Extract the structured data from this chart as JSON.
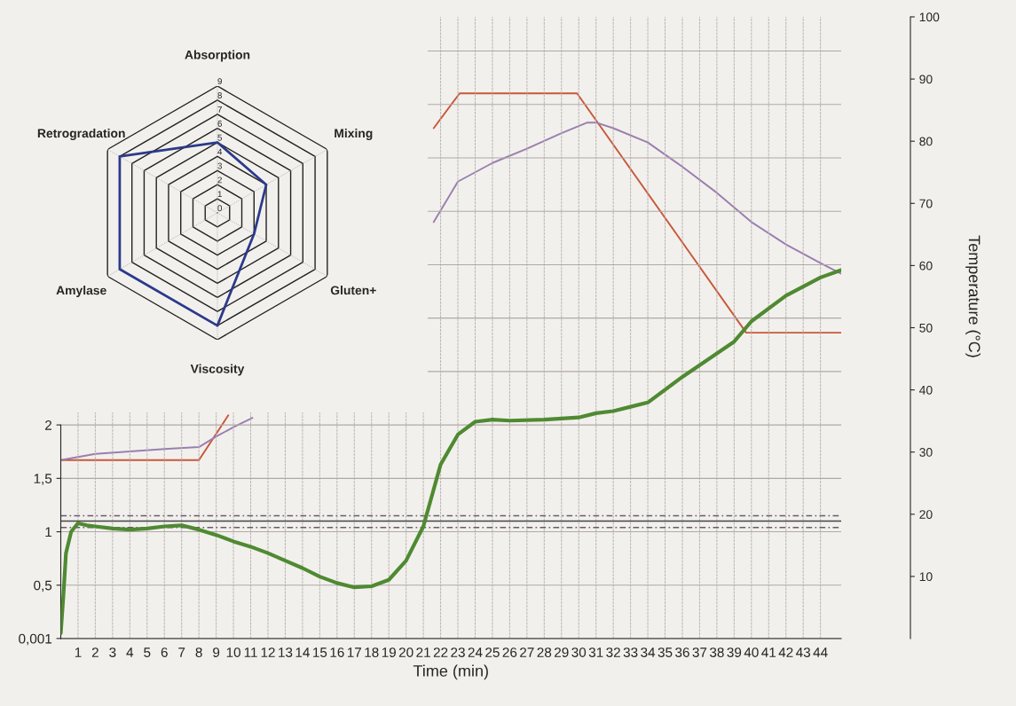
{
  "chart_data": [
    {
      "type": "radar",
      "categories": [
        "Absorption",
        "Mixing",
        "Gluten+",
        "Viscosity",
        "Amylase",
        "Retrogradation"
      ],
      "series": [
        {
          "color": "#2b3a8c",
          "values": [
            5,
            4,
            3,
            8,
            8,
            8
          ]
        }
      ],
      "ylim": [
        0,
        9
      ],
      "yticks": [
        0,
        1,
        2,
        3,
        4,
        5,
        6,
        7,
        8,
        9
      ],
      "grid": true
    },
    {
      "type": "line",
      "xlabel": "Time (min)",
      "y2label": "Temperature (°C)",
      "xlim": [
        0,
        45.2
      ],
      "xticks": [
        1,
        2,
        3,
        4,
        5,
        6,
        7,
        8,
        9,
        10,
        11,
        12,
        13,
        14,
        15,
        16,
        17,
        18,
        19,
        20,
        21,
        22,
        23,
        24,
        25,
        26,
        27,
        28,
        29,
        30,
        31,
        32,
        33,
        34,
        35,
        36,
        37,
        38,
        39,
        40,
        41,
        42,
        43,
        44
      ],
      "ylim": [
        0,
        5.82
      ],
      "yticks": [
        {
          "value": 0.001,
          "label": "0,001"
        },
        {
          "value": 0.5,
          "label": "0,5"
        },
        1,
        {
          "value": 1.5,
          "label": "1,5"
        },
        2,
        {
          "value": 2.5,
          "label": null
        },
        {
          "value": 3,
          "label": null
        },
        {
          "value": 3.5,
          "label": null
        },
        {
          "value": 4,
          "label": null
        },
        {
          "value": 4.5,
          "label": null
        },
        {
          "value": 5,
          "label": null
        },
        {
          "value": 5.5,
          "label": null
        }
      ],
      "y2lim": [
        0,
        100
      ],
      "y2ticks": [
        10,
        20,
        30,
        40,
        50,
        60,
        70,
        80,
        90,
        100
      ],
      "grid": true,
      "ref_lines": [
        {
          "axis": "y",
          "value": 1.15,
          "line_style": "dashed",
          "color": "#6a5a6a"
        },
        {
          "axis": "y",
          "value": 1.1,
          "line_style": "solid",
          "color": "#444444"
        },
        {
          "axis": "y",
          "value": 1.04,
          "line_style": "dashed",
          "color": "#6a5a6a"
        }
      ],
      "series": [
        {
          "type": "line",
          "color": "#4f8a32",
          "x": [
            0,
            0.15,
            0.3,
            0.6,
            1,
            1.5,
            2,
            3,
            4,
            5,
            6,
            7,
            8,
            9,
            10,
            11,
            12,
            13,
            14,
            15,
            16,
            17,
            18,
            19,
            20,
            21,
            22,
            23,
            24,
            25,
            26,
            28,
            30,
            31,
            32,
            33,
            34,
            36,
            38,
            39,
            40,
            42,
            44,
            45.2
          ],
          "values": [
            0.05,
            0.4,
            0.8,
            1.0,
            1.08,
            1.06,
            1.05,
            1.03,
            1.02,
            1.03,
            1.05,
            1.06,
            1.02,
            0.97,
            0.91,
            0.86,
            0.8,
            0.73,
            0.66,
            0.58,
            0.52,
            0.48,
            0.49,
            0.55,
            0.73,
            1.05,
            1.63,
            1.91,
            2.03,
            2.05,
            2.04,
            2.05,
            2.07,
            2.11,
            2.13,
            2.17,
            2.21,
            2.45,
            2.67,
            2.78,
            2.97,
            3.21,
            3.38,
            3.45
          ]
        },
        {
          "type": "line",
          "axis": "y2",
          "color": "#c8583a",
          "x": [
            0,
            8,
            9.7,
            15,
            21.6,
            23.1,
            29.9,
            39.7,
            45.2
          ],
          "values": [
            28.7,
            28.7,
            35.9,
            null,
            82.1,
            87.7,
            87.7,
            49.2,
            49.2
          ]
        },
        {
          "type": "line",
          "axis": "y2",
          "color": "#9a7fb0",
          "x": [
            0,
            2,
            4,
            6,
            8,
            9,
            10,
            11.1,
            15,
            21.6,
            23,
            25,
            27,
            29,
            30.5,
            31,
            32,
            34,
            36,
            38,
            40,
            42,
            44,
            45.2
          ],
          "values": [
            28.7,
            29.7,
            30.1,
            30.5,
            30.8,
            32.5,
            34,
            35.5,
            null,
            67.0,
            73.5,
            76.5,
            78.8,
            81.3,
            83.0,
            83.0,
            82.1,
            79.8,
            75.9,
            71.7,
            67.0,
            63.4,
            60.4,
            58.7
          ]
        }
      ]
    }
  ]
}
